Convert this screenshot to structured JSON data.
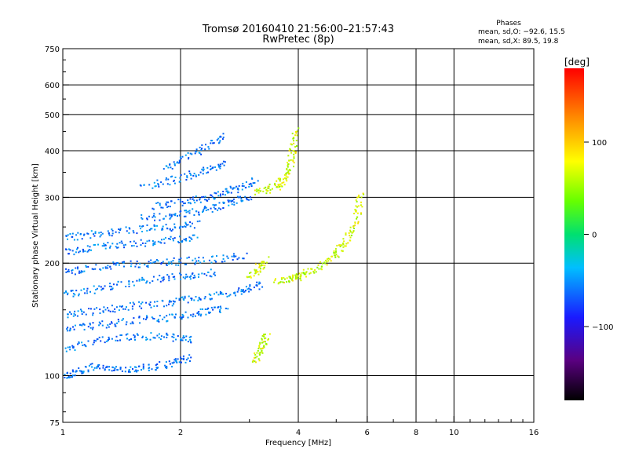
{
  "chart_data": {
    "type": "scatter",
    "title": "Tromsø 20160410 21:56:00–21:57:43",
    "subtitle": "RwPretec (8p)",
    "xlabel": "Frequency [MHz]",
    "ylabel": "Stationary phase Virtual Height [km]",
    "x_scale": "log",
    "y_scale": "log",
    "xlim": [
      1,
      16
    ],
    "ylim": [
      75,
      750
    ],
    "x_ticks": [
      1,
      2,
      4,
      6,
      8,
      10,
      16
    ],
    "x_tick_labels": [
      "1",
      "2",
      "4",
      "6",
      "8",
      "10",
      "16"
    ],
    "y_ticks": [
      75,
      100,
      200,
      300,
      400,
      500,
      600,
      750
    ],
    "y_tick_labels": [
      "75",
      "100",
      "200",
      "300",
      "400",
      "500",
      "600",
      "750"
    ],
    "grid": true,
    "grid_x": [
      2,
      4,
      6,
      8,
      10
    ],
    "grid_y": [
      100,
      200,
      300,
      400,
      500,
      600
    ],
    "legend": {
      "title": "Phases",
      "lines": [
        "mean, sd,O: −92.6, 15.5",
        "mean, sd,X:  89.5, 19.8"
      ],
      "placement": "top-right"
    },
    "colorbar": {
      "label": "[deg]",
      "range": [
        -180,
        180
      ],
      "ticks": [
        100,
        0,
        -100
      ],
      "tick_labels": [
        "100",
        "0",
        "−100"
      ],
      "colormap": "rainbow"
    },
    "series": [
      {
        "phase_mean": -92.6,
        "phase_sd": 15.5,
        "traces": [
          {
            "x": [
              1.0,
              1.05,
              1.12,
              1.2,
              1.3,
              1.42,
              1.55,
              1.7,
              1.85,
              2.0,
              2.1
            ],
            "y": [
              100,
              102,
              104,
              106,
              105,
              105,
              105,
              106,
              108,
              110,
              112
            ]
          },
          {
            "x": [
              1.0,
              1.1,
              1.25,
              1.4,
              1.6,
              1.8,
              2.0,
              2.15
            ],
            "y": [
              118,
              122,
              125,
              127,
              128,
              128,
              126,
              125
            ]
          },
          {
            "x": [
              1.0,
              1.1,
              1.25,
              1.4,
              1.6,
              1.8,
              2.0,
              2.2,
              2.4,
              2.6
            ],
            "y": [
              132,
              135,
              137,
              140,
              142,
              143,
              145,
              147,
              150,
              152
            ]
          },
          {
            "x": [
              1.0,
              1.1,
              1.25,
              1.4,
              1.6,
              1.8,
              2.0,
              2.2,
              2.5,
              2.8,
              3.0,
              3.2
            ],
            "y": [
              145,
              148,
              150,
              153,
              155,
              157,
              160,
              162,
              165,
              168,
              172,
              176
            ]
          },
          {
            "x": [
              1.0,
              1.1,
              1.25,
              1.4,
              1.6,
              1.8,
              2.0,
              2.2,
              2.5
            ],
            "y": [
              165,
              168,
              172,
              176,
              180,
              183,
              185,
              187,
              190
            ]
          },
          {
            "x": [
              1.0,
              1.1,
              1.25,
              1.4,
              1.6,
              1.8,
              2.0,
              2.3,
              2.6,
              2.9
            ],
            "y": [
              190,
              193,
              196,
              199,
              200,
              202,
              203,
              205,
              207,
              210
            ]
          },
          {
            "x": [
              1.0,
              1.1,
              1.25,
              1.4,
              1.6,
              1.8,
              2.0,
              2.2
            ],
            "y": [
              215,
              218,
              222,
              226,
              228,
              231,
              233,
              235
            ]
          },
          {
            "x": [
              1.0,
              1.1,
              1.25,
              1.4,
              1.6,
              1.8,
              2.0,
              2.2
            ],
            "y": [
              235,
              238,
              242,
              245,
              248,
              250,
              252,
              255
            ]
          },
          {
            "x": [
              1.6,
              1.8,
              2.0,
              2.2,
              2.4,
              2.6,
              2.8,
              3.0
            ],
            "y": [
              265,
              268,
              272,
              276,
              282,
              288,
              296,
              305
            ]
          },
          {
            "x": [
              1.7,
              1.9,
              2.1,
              2.3,
              2.5,
              2.7,
              2.9,
              3.1
            ],
            "y": [
              285,
              290,
              295,
              300,
              308,
              315,
              325,
              335
            ]
          },
          {
            "x": [
              1.6,
              1.8,
              2.0,
              2.2,
              2.4,
              2.6
            ],
            "y": [
              320,
              330,
              340,
              350,
              360,
              375
            ]
          },
          {
            "x": [
              1.8,
              2.0,
              2.2,
              2.4,
              2.6
            ],
            "y": [
              360,
              380,
              400,
              420,
              440
            ]
          }
        ]
      },
      {
        "phase_mean": 89.5,
        "phase_sd": 19.8,
        "traces": [
          {
            "x": [
              3.1,
              3.3,
              3.5,
              3.6,
              3.7,
              3.8,
              3.85,
              3.9,
              3.95
            ],
            "y": [
              310,
              315,
              322,
              330,
              345,
              365,
              390,
              420,
              460
            ]
          },
          {
            "x": [
              3.5,
              3.7,
              3.9,
              4.0,
              4.2
            ],
            "y": [
              180,
              182,
              183,
              185,
              188
            ]
          },
          {
            "x": [
              4.2,
              4.5,
              4.8,
              5.0,
              5.2,
              5.4,
              5.6,
              5.7,
              5.75
            ],
            "y": [
              190,
              195,
              205,
              215,
              225,
              240,
              260,
              285,
              310
            ]
          },
          {
            "x": [
              3.1,
              3.15,
              3.2,
              3.25,
              3.3
            ],
            "y": [
              110,
              115,
              120,
              125,
              130
            ]
          },
          {
            "x": [
              3.0,
              3.1,
              3.2,
              3.3
            ],
            "y": [
              185,
              192,
              198,
              205
            ]
          }
        ]
      }
    ]
  }
}
